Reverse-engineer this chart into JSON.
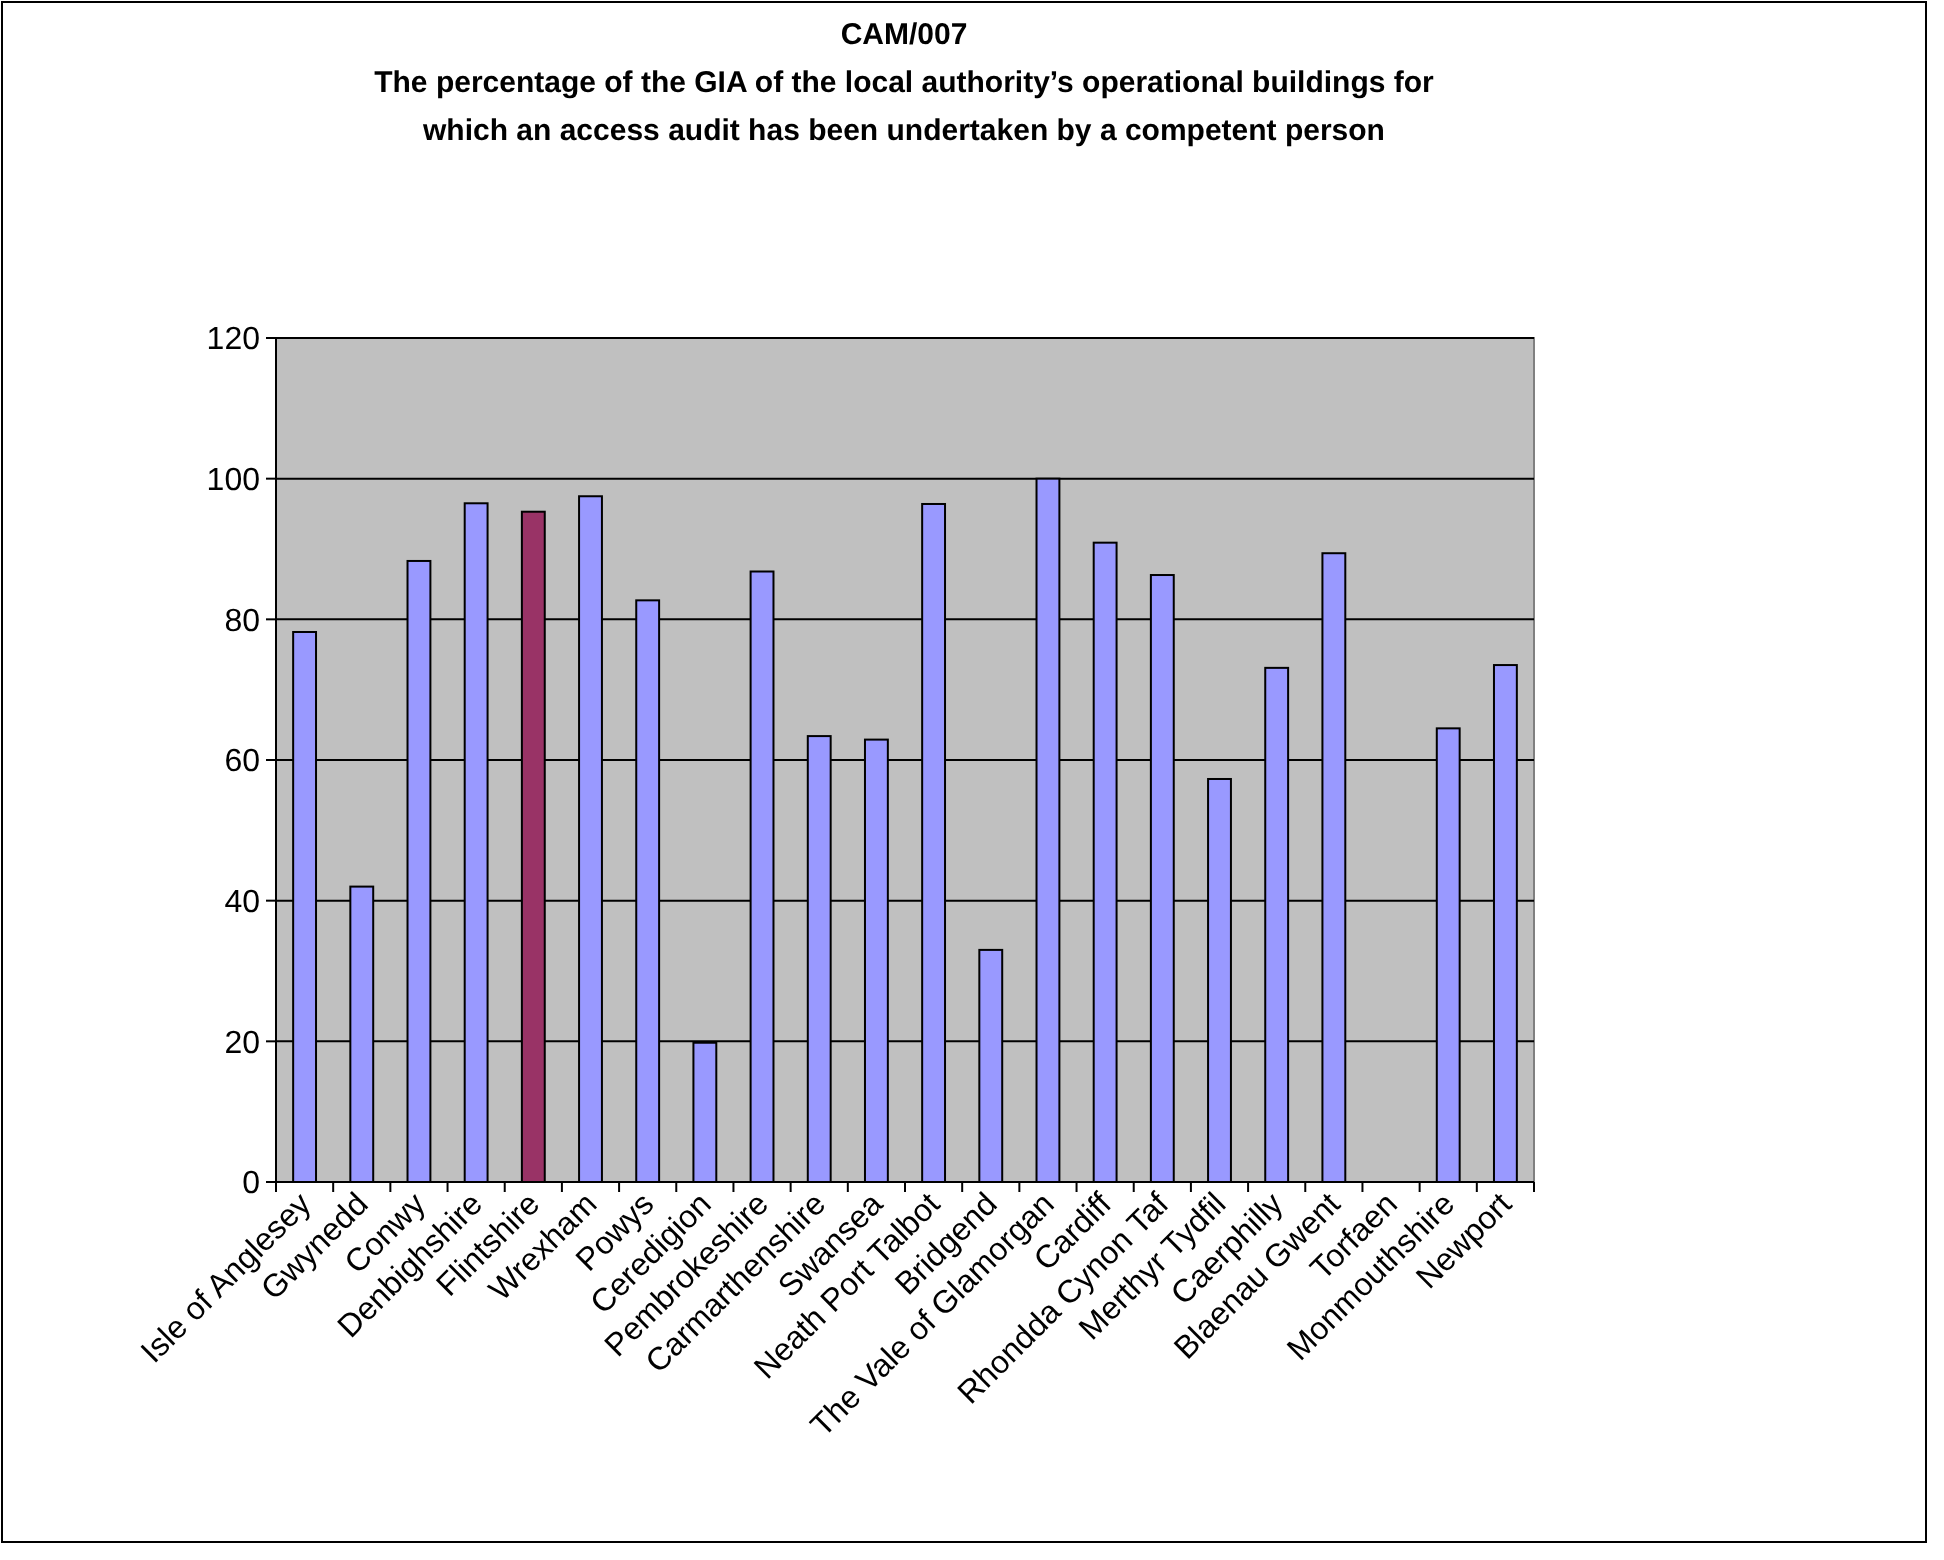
{
  "chart_data": {
    "type": "bar",
    "title": "CAM/007",
    "subtitle": "The percentage of the GIA of the local authority’s operational buildings for which an access audit has been undertaken by a competent person",
    "categories": [
      "Isle of Anglesey",
      "Gwynedd",
      "Conwy",
      "Denbighshire",
      "Flintshire",
      "Wrexham",
      "Powys",
      "Ceredigion",
      "Pembrokeshire",
      "Carmarthenshire",
      "Swansea",
      "Neath Port Talbot",
      "Bridgend",
      "The Vale of Glamorgan",
      "Cardiff",
      "Rhondda Cynon Taf",
      "Merthyr Tydfil",
      "Caerphilly",
      "Blaenau Gwent",
      "Torfaen",
      "Monmouthshire",
      "Newport"
    ],
    "values": [
      78.2,
      42,
      88.3,
      96.5,
      95.3,
      97.5,
      82.7,
      19.8,
      86.8,
      63.4,
      62.9,
      96.4,
      33,
      100,
      90.9,
      86.3,
      57.3,
      73.1,
      89.4,
      null,
      64.5,
      73.5
    ],
    "colors": [
      "#9999ff",
      "#9999ff",
      "#9999ff",
      "#9999ff",
      "#993366",
      "#9999ff",
      "#9999ff",
      "#9999ff",
      "#9999ff",
      "#9999ff",
      "#9999ff",
      "#9999ff",
      "#9999ff",
      "#9999ff",
      "#9999ff",
      "#9999ff",
      "#9999ff",
      "#9999ff",
      "#9999ff",
      null,
      "#9999ff",
      "#9999ff"
    ],
    "ylim": [
      0,
      120
    ],
    "yticks": [
      0,
      20,
      40,
      60,
      80,
      100,
      120
    ],
    "grid": "y"
  }
}
